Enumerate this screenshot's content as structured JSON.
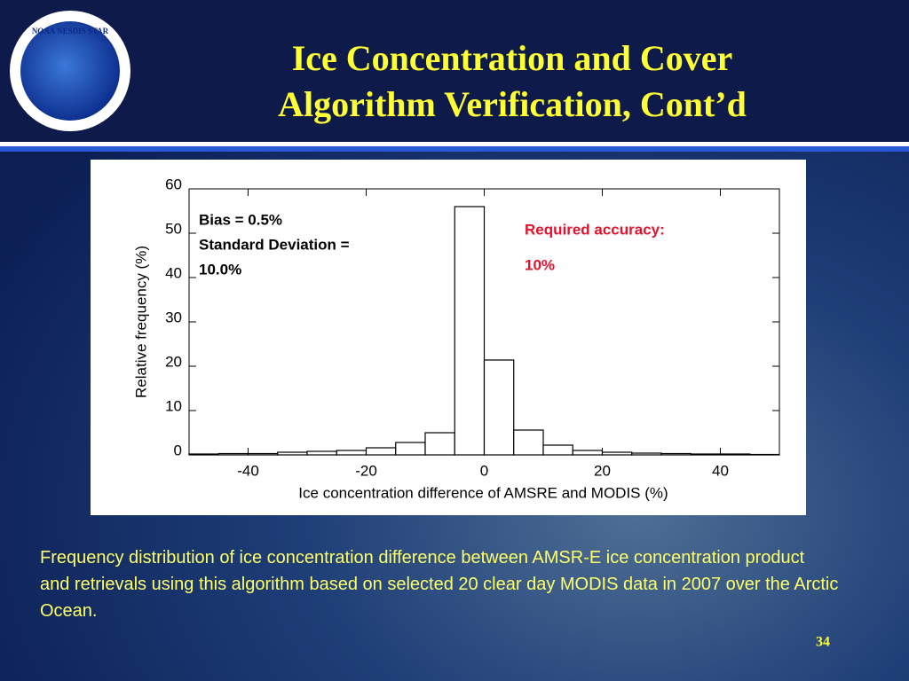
{
  "header": {
    "title_lines": [
      "Ice Concentration and Cover",
      "Algorithm Verification, Cont’d"
    ],
    "logo_text": "NOAA NESDIS STAR"
  },
  "chart_data": {
    "type": "histogram",
    "bins": [
      -50,
      -45,
      -40,
      -35,
      -30,
      -25,
      -20,
      -15,
      -10,
      -5,
      0,
      5,
      10,
      15,
      20,
      25,
      30,
      35,
      40,
      45,
      50
    ],
    "values": [
      0.2,
      0.3,
      0.3,
      0.6,
      0.8,
      1,
      1.6,
      2.8,
      5,
      56,
      21.4,
      5.6,
      2.2,
      1,
      0.6,
      0.4,
      0.3,
      0.2,
      0.2,
      0.1
    ],
    "color": "#ffffff",
    "xlabel": "Ice concentration difference of AMSRE and MODIS (%)",
    "ylabel": "Relative frequency (%)",
    "xlim": [
      -50,
      50
    ],
    "xticks": [
      -40,
      -20,
      0,
      20,
      40
    ],
    "ylim": [
      0,
      60
    ],
    "yticks": [
      0,
      10,
      20,
      30,
      40,
      50,
      60
    ],
    "annotations": [
      "Bias  = 0.5%",
      "Standard Deviation =",
      "10.0%",
      "Required accuracy:",
      "10%"
    ]
  },
  "caption": "Frequency distribution of ice concentration difference between AMSR-E ice concentration product and retrievals using this algorithm based on selected 20 clear day MODIS data in 2007 over the Arctic Ocean.",
  "page_number": "34"
}
